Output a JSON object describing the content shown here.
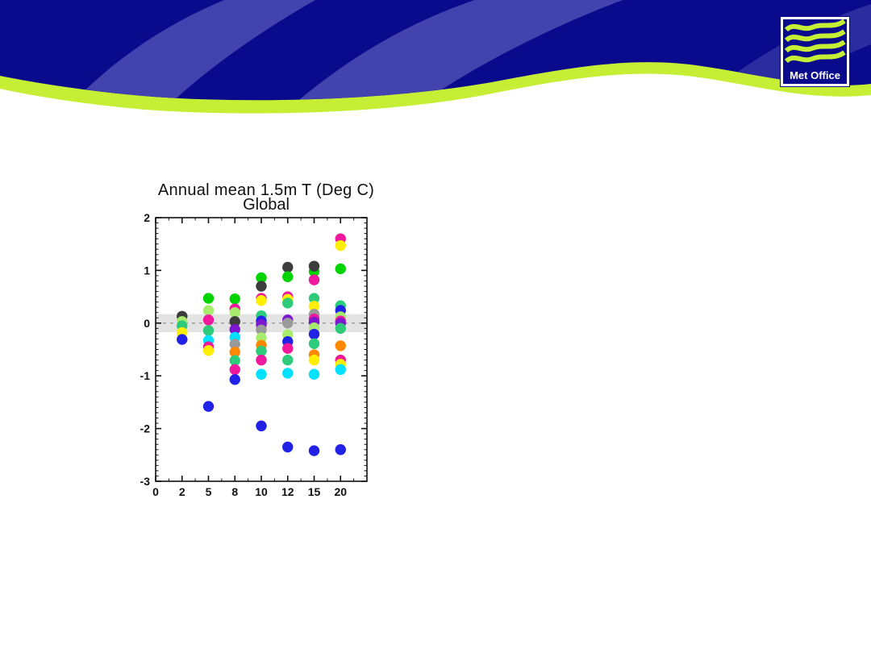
{
  "header": {
    "logo_text": "Met Office",
    "colors": {
      "navy": "#0a0a8c",
      "wave_blue": "#4343af",
      "lime": "#c6ee35",
      "logo_navy": "#0a0a8c",
      "logo_wave": "#c6ee35"
    }
  },
  "chart_data": {
    "type": "scatter",
    "title": "Annual mean 1.5m T (Deg C)",
    "subtitle": "Global",
    "xlabel": "",
    "ylabel": "",
    "x_tick_labels": [
      "0",
      "2",
      "5",
      "8",
      "10",
      "12",
      "15",
      "20"
    ],
    "y_tick_labels": [
      "2",
      "1",
      "0",
      "-1",
      "-2",
      "-3"
    ],
    "ylim": [
      -3,
      2
    ],
    "grid": false,
    "zero_band": {
      "from": -0.17,
      "to": 0.17,
      "color": "#e3e3e3"
    },
    "zero_line": {
      "y": 0,
      "style": "dashed",
      "color": "#999999"
    },
    "axis_color": "#111111",
    "palette": {
      "dark-gray": "#3d3d3d",
      "gray": "#9a9a9a",
      "blue": "#2222e6",
      "cyan": "#00e0ff",
      "green": "#00d400",
      "pale-green": "#a8ec6e",
      "sea-green": "#2ecc7a",
      "yellow": "#ffee00",
      "orange": "#ff8800",
      "magenta": "#f0189c",
      "purple": "#7d17cf"
    },
    "points": [
      {
        "x": "2",
        "y": 0.13,
        "c": "dark-gray"
      },
      {
        "x": "2",
        "y": 0.03,
        "c": "pale-green"
      },
      {
        "x": "2",
        "y": -0.05,
        "c": "sea-green"
      },
      {
        "x": "2",
        "y": -0.18,
        "c": "yellow"
      },
      {
        "x": "2",
        "y": -0.31,
        "c": "blue"
      },
      {
        "x": "5",
        "y": 0.47,
        "c": "green"
      },
      {
        "x": "5",
        "y": 0.24,
        "c": "pale-green"
      },
      {
        "x": "5",
        "y": 0.06,
        "c": "magenta"
      },
      {
        "x": "5",
        "y": -0.14,
        "c": "sea-green"
      },
      {
        "x": "5",
        "y": -0.33,
        "c": "cyan"
      },
      {
        "x": "5",
        "y": -0.45,
        "c": "magenta"
      },
      {
        "x": "5",
        "y": -0.52,
        "c": "yellow"
      },
      {
        "x": "5",
        "y": -1.58,
        "c": "blue"
      },
      {
        "x": "8",
        "y": 0.46,
        "c": "green"
      },
      {
        "x": "8",
        "y": 0.27,
        "c": "magenta"
      },
      {
        "x": "8",
        "y": 0.2,
        "c": "pale-green"
      },
      {
        "x": "8",
        "y": 0.03,
        "c": "dark-gray"
      },
      {
        "x": "8",
        "y": -0.12,
        "c": "purple"
      },
      {
        "x": "8",
        "y": -0.27,
        "c": "cyan"
      },
      {
        "x": "8",
        "y": -0.4,
        "c": "gray"
      },
      {
        "x": "8",
        "y": -0.55,
        "c": "orange"
      },
      {
        "x": "8",
        "y": -0.71,
        "c": "sea-green"
      },
      {
        "x": "8",
        "y": -0.88,
        "c": "magenta"
      },
      {
        "x": "8",
        "y": -1.07,
        "c": "blue"
      },
      {
        "x": "10",
        "y": 0.86,
        "c": "green"
      },
      {
        "x": "10",
        "y": 0.7,
        "c": "dark-gray"
      },
      {
        "x": "10",
        "y": 0.47,
        "c": "magenta"
      },
      {
        "x": "10",
        "y": 0.43,
        "c": "yellow"
      },
      {
        "x": "10",
        "y": 0.14,
        "c": "sea-green"
      },
      {
        "x": "10",
        "y": 0.04,
        "c": "blue"
      },
      {
        "x": "10",
        "y": -0.03,
        "c": "purple"
      },
      {
        "x": "10",
        "y": -0.13,
        "c": "gray"
      },
      {
        "x": "10",
        "y": -0.28,
        "c": "pale-green"
      },
      {
        "x": "10",
        "y": -0.42,
        "c": "orange"
      },
      {
        "x": "10",
        "y": -0.53,
        "c": "sea-green"
      },
      {
        "x": "10",
        "y": -0.7,
        "c": "magenta"
      },
      {
        "x": "10",
        "y": -0.97,
        "c": "cyan"
      },
      {
        "x": "10",
        "y": -1.95,
        "c": "blue"
      },
      {
        "x": "12",
        "y": 1.06,
        "c": "dark-gray"
      },
      {
        "x": "12",
        "y": 0.88,
        "c": "green"
      },
      {
        "x": "12",
        "y": 0.5,
        "c": "magenta"
      },
      {
        "x": "12",
        "y": 0.45,
        "c": "yellow"
      },
      {
        "x": "12",
        "y": 0.38,
        "c": "sea-green"
      },
      {
        "x": "12",
        "y": 0.06,
        "c": "purple"
      },
      {
        "x": "12",
        "y": 0.0,
        "c": "gray"
      },
      {
        "x": "12",
        "y": -0.22,
        "c": "pale-green"
      },
      {
        "x": "12",
        "y": -0.35,
        "c": "blue"
      },
      {
        "x": "12",
        "y": -0.48,
        "c": "magenta"
      },
      {
        "x": "12",
        "y": -0.7,
        "c": "sea-green"
      },
      {
        "x": "12",
        "y": -0.95,
        "c": "cyan"
      },
      {
        "x": "12",
        "y": -2.35,
        "c": "blue"
      },
      {
        "x": "15",
        "y": 0.98,
        "c": "green"
      },
      {
        "x": "15",
        "y": 1.08,
        "c": "dark-gray"
      },
      {
        "x": "15",
        "y": 0.82,
        "c": "magenta"
      },
      {
        "x": "15",
        "y": 0.47,
        "c": "sea-green"
      },
      {
        "x": "15",
        "y": 0.32,
        "c": "yellow"
      },
      {
        "x": "15",
        "y": 0.17,
        "c": "gray"
      },
      {
        "x": "15",
        "y": 0.08,
        "c": "magenta"
      },
      {
        "x": "15",
        "y": 0.02,
        "c": "purple"
      },
      {
        "x": "15",
        "y": -0.09,
        "c": "pale-green"
      },
      {
        "x": "15",
        "y": -0.21,
        "c": "blue"
      },
      {
        "x": "15",
        "y": -0.39,
        "c": "sea-green"
      },
      {
        "x": "15",
        "y": -0.6,
        "c": "orange"
      },
      {
        "x": "15",
        "y": -0.7,
        "c": "yellow"
      },
      {
        "x": "15",
        "y": -0.97,
        "c": "cyan"
      },
      {
        "x": "15",
        "y": -2.42,
        "c": "blue"
      },
      {
        "x": "20",
        "y": 1.6,
        "c": "magenta"
      },
      {
        "x": "20",
        "y": 1.47,
        "c": "yellow"
      },
      {
        "x": "20",
        "y": 1.03,
        "c": "green"
      },
      {
        "x": "20",
        "y": 0.33,
        "c": "sea-green"
      },
      {
        "x": "20",
        "y": 0.24,
        "c": "blue"
      },
      {
        "x": "20",
        "y": 0.12,
        "c": "pale-green"
      },
      {
        "x": "20",
        "y": 0.04,
        "c": "magenta"
      },
      {
        "x": "20",
        "y": 0.0,
        "c": "purple"
      },
      {
        "x": "20",
        "y": -0.1,
        "c": "sea-green"
      },
      {
        "x": "20",
        "y": -0.43,
        "c": "orange"
      },
      {
        "x": "20",
        "y": -0.7,
        "c": "magenta"
      },
      {
        "x": "20",
        "y": -0.78,
        "c": "yellow"
      },
      {
        "x": "20",
        "y": -0.88,
        "c": "cyan"
      },
      {
        "x": "20",
        "y": -2.4,
        "c": "blue"
      }
    ]
  }
}
